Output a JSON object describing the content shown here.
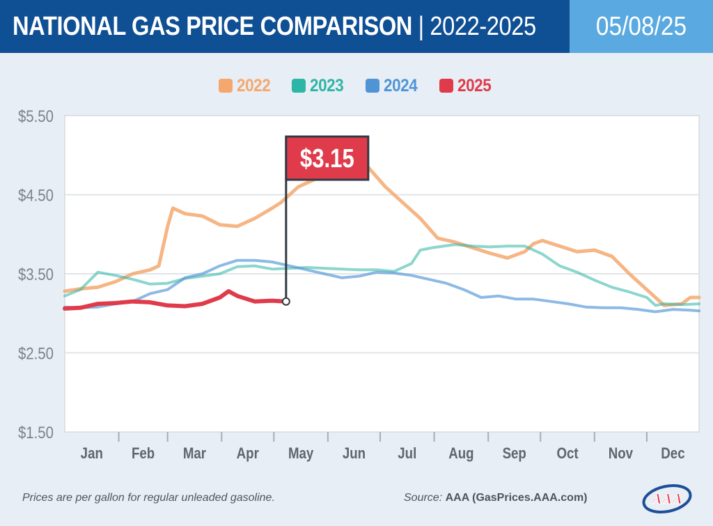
{
  "header": {
    "title_main": "NATIONAL GAS PRICE COMPARISON",
    "separator": "|",
    "title_years": "2022-2025",
    "date": "05/08/25"
  },
  "colors": {
    "header_bg": "#0f4f94",
    "date_bg": "#5aa9e0",
    "2022": "#f5a86e",
    "2023": "#2db5a5",
    "2024": "#4f95d6",
    "2025": "#e03b4b"
  },
  "chart_data": {
    "type": "line",
    "ylim": [
      1.5,
      5.5
    ],
    "yticks": [
      "$1.50",
      "$2.50",
      "$3.50",
      "$4.50",
      "$5.50"
    ],
    "ytick_values": [
      1.5,
      2.5,
      3.5,
      4.5,
      5.5
    ],
    "xlim": [
      1,
      365
    ],
    "months": [
      "Jan",
      "Feb",
      "Mar",
      "Apr",
      "May",
      "Jun",
      "Jul",
      "Aug",
      "Sep",
      "Oct",
      "Nov",
      "Dec"
    ],
    "month_start_days": [
      1,
      32,
      60,
      91,
      121,
      152,
      182,
      213,
      244,
      274,
      305,
      335
    ],
    "grid": true,
    "legend_position": "top-center",
    "series": [
      {
        "name": "2022",
        "x": [
          1,
          10,
          20,
          30,
          40,
          50,
          55,
          60,
          63,
          70,
          80,
          90,
          100,
          110,
          120,
          125,
          135,
          145,
          150,
          155,
          160,
          165,
          175,
          185,
          195,
          205,
          215,
          225,
          235,
          245,
          255,
          265,
          270,
          275,
          285,
          295,
          305,
          315,
          325,
          335,
          345,
          355,
          360,
          365
        ],
        "y": [
          3.28,
          3.31,
          3.33,
          3.4,
          3.5,
          3.55,
          3.6,
          4.1,
          4.33,
          4.26,
          4.23,
          4.12,
          4.1,
          4.2,
          4.33,
          4.4,
          4.6,
          4.7,
          4.85,
          5.0,
          5.01,
          4.96,
          4.85,
          4.6,
          4.4,
          4.2,
          3.95,
          3.9,
          3.83,
          3.76,
          3.7,
          3.78,
          3.88,
          3.92,
          3.85,
          3.78,
          3.8,
          3.72,
          3.5,
          3.3,
          3.1,
          3.12,
          3.2,
          3.2
        ]
      },
      {
        "name": "2023",
        "x": [
          1,
          10,
          20,
          30,
          40,
          50,
          60,
          70,
          80,
          90,
          100,
          110,
          120,
          130,
          140,
          150,
          160,
          170,
          180,
          190,
          200,
          205,
          212,
          225,
          235,
          245,
          255,
          265,
          275,
          285,
          295,
          305,
          315,
          325,
          335,
          340,
          345,
          355,
          365
        ],
        "y": [
          3.22,
          3.3,
          3.52,
          3.48,
          3.43,
          3.37,
          3.38,
          3.44,
          3.47,
          3.5,
          3.59,
          3.6,
          3.56,
          3.57,
          3.58,
          3.57,
          3.56,
          3.55,
          3.55,
          3.53,
          3.63,
          3.8,
          3.83,
          3.87,
          3.85,
          3.84,
          3.85,
          3.85,
          3.75,
          3.6,
          3.52,
          3.42,
          3.33,
          3.27,
          3.2,
          3.1,
          3.12,
          3.11,
          3.12
        ]
      },
      {
        "name": "2024",
        "x": [
          1,
          10,
          20,
          30,
          40,
          50,
          60,
          70,
          80,
          90,
          100,
          110,
          120,
          130,
          140,
          150,
          160,
          170,
          180,
          190,
          200,
          210,
          220,
          230,
          240,
          250,
          260,
          270,
          280,
          290,
          300,
          310,
          320,
          330,
          340,
          350,
          360,
          365
        ],
        "y": [
          3.08,
          3.07,
          3.08,
          3.12,
          3.15,
          3.25,
          3.3,
          3.45,
          3.5,
          3.6,
          3.67,
          3.67,
          3.65,
          3.6,
          3.55,
          3.5,
          3.45,
          3.47,
          3.52,
          3.51,
          3.48,
          3.43,
          3.38,
          3.3,
          3.2,
          3.22,
          3.18,
          3.18,
          3.15,
          3.12,
          3.08,
          3.07,
          3.07,
          3.05,
          3.02,
          3.05,
          3.04,
          3.03
        ]
      },
      {
        "name": "2025",
        "x": [
          1,
          10,
          20,
          30,
          40,
          50,
          60,
          70,
          80,
          90,
          95,
          100,
          110,
          120,
          128
        ],
        "y": [
          3.06,
          3.07,
          3.12,
          3.13,
          3.15,
          3.14,
          3.1,
          3.09,
          3.12,
          3.2,
          3.28,
          3.22,
          3.15,
          3.16,
          3.15
        ]
      }
    ],
    "callout": {
      "label": "$3.15",
      "x": 128,
      "y": 3.15
    }
  },
  "footer": {
    "note": "Prices are per gallon for regular unleaded gasoline.",
    "source_label": "Source:",
    "source_org": "AAA (GasPrices.AAA.com)"
  },
  "logo": {
    "text": "AAA",
    "icon": "aaa-logo"
  }
}
